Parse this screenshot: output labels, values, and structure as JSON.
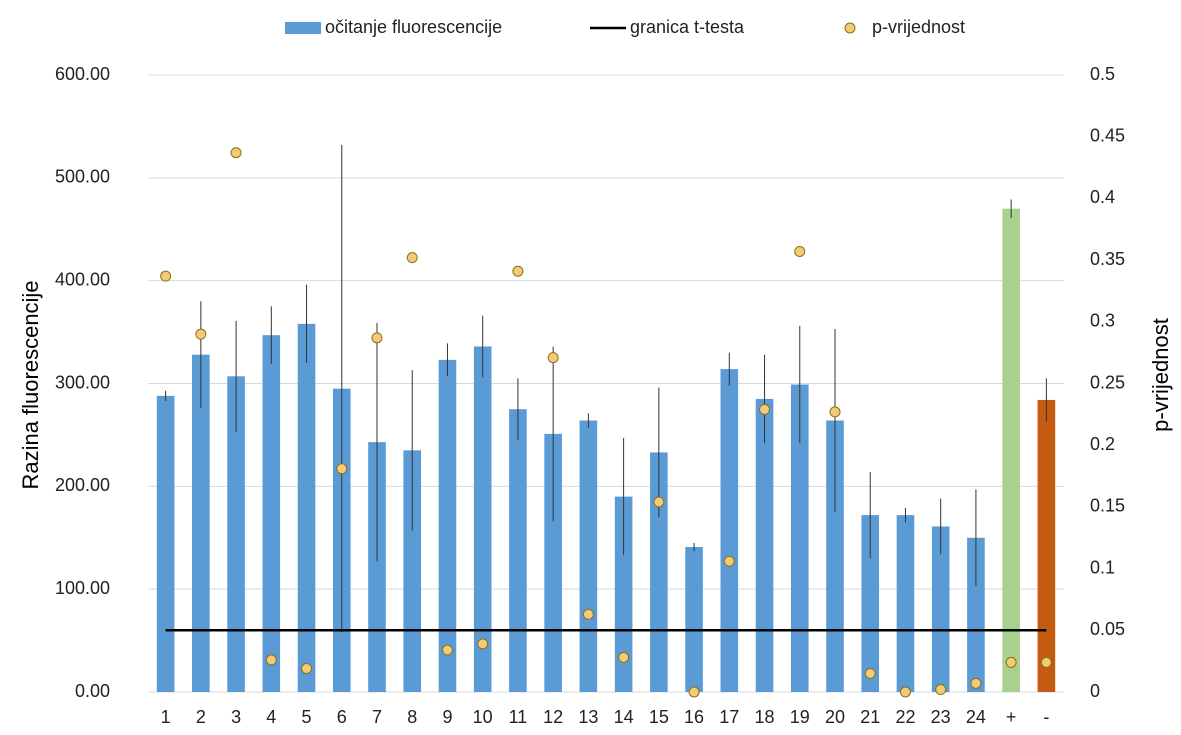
{
  "chart_data": {
    "type": "bar",
    "y_label": "Razina fluorescencije",
    "y2_label": "p-vrijednost",
    "categories": [
      "1",
      "2",
      "3",
      "4",
      "5",
      "6",
      "7",
      "8",
      "9",
      "10",
      "11",
      "12",
      "13",
      "14",
      "15",
      "16",
      "17",
      "18",
      "19",
      "20",
      "21",
      "22",
      "23",
      "24",
      "+",
      "-"
    ],
    "series": [
      {
        "name": "očitanje fluorescencije",
        "type": "bar",
        "color": "#5b9bd5",
        "colors": [
          "#5b9bd5",
          "#5b9bd5",
          "#5b9bd5",
          "#5b9bd5",
          "#5b9bd5",
          "#5b9bd5",
          "#5b9bd5",
          "#5b9bd5",
          "#5b9bd5",
          "#5b9bd5",
          "#5b9bd5",
          "#5b9bd5",
          "#5b9bd5",
          "#5b9bd5",
          "#5b9bd5",
          "#5b9bd5",
          "#5b9bd5",
          "#5b9bd5",
          "#5b9bd5",
          "#5b9bd5",
          "#5b9bd5",
          "#5b9bd5",
          "#5b9bd5",
          "#5b9bd5",
          "#a9d18e",
          "#c55a11"
        ],
        "values": [
          288,
          328,
          307,
          347,
          358,
          295,
          243,
          235,
          323,
          336,
          275,
          251,
          264,
          190,
          233,
          141,
          314,
          285,
          299,
          264,
          172,
          172,
          161,
          150,
          470,
          284
        ],
        "errors": [
          5,
          52,
          54,
          28,
          38,
          237,
          116,
          78,
          16,
          30,
          30,
          85,
          7,
          57,
          63,
          4,
          16,
          43,
          57,
          89,
          42,
          7,
          27,
          47,
          9,
          21
        ]
      },
      {
        "name": "granica t-testa",
        "type": "line",
        "color": "#000000",
        "axis": "y2",
        "values": [
          0.05,
          0.05,
          0.05,
          0.05,
          0.05,
          0.05,
          0.05,
          0.05,
          0.05,
          0.05,
          0.05,
          0.05,
          0.05,
          0.05,
          0.05,
          0.05,
          0.05,
          0.05,
          0.05,
          0.05,
          0.05,
          0.05,
          0.05,
          0.05,
          0.05,
          0.05
        ]
      },
      {
        "name": "p-vrijednost",
        "type": "scatter",
        "color": "#f2cc74",
        "axis": "y2",
        "values": [
          0.337,
          0.29,
          0.437,
          0.026,
          0.019,
          0.181,
          0.287,
          0.352,
          0.034,
          0.039,
          0.341,
          0.271,
          0.063,
          0.028,
          0.154,
          0.0,
          0.106,
          0.229,
          0.357,
          0.227,
          0.015,
          0.0,
          0.002,
          0.007,
          0.024,
          0.024
        ]
      }
    ],
    "ylim": [
      0,
      600
    ],
    "yticks": [
      {
        "value": 0,
        "label": "0.00"
      },
      {
        "value": 100,
        "label": "100.00"
      },
      {
        "value": 200,
        "label": "200.00"
      },
      {
        "value": 300,
        "label": "300.00"
      },
      {
        "value": 400,
        "label": "400.00"
      },
      {
        "value": 500,
        "label": "500.00"
      },
      {
        "value": 600,
        "label": "600.00"
      }
    ],
    "y2lim": [
      0,
      0.5
    ],
    "y2ticks": [
      0,
      0.05,
      0.1,
      0.15,
      0.2,
      0.25,
      0.3,
      0.35,
      0.4,
      0.45,
      0.5
    ],
    "grid": true,
    "legend": "top"
  }
}
